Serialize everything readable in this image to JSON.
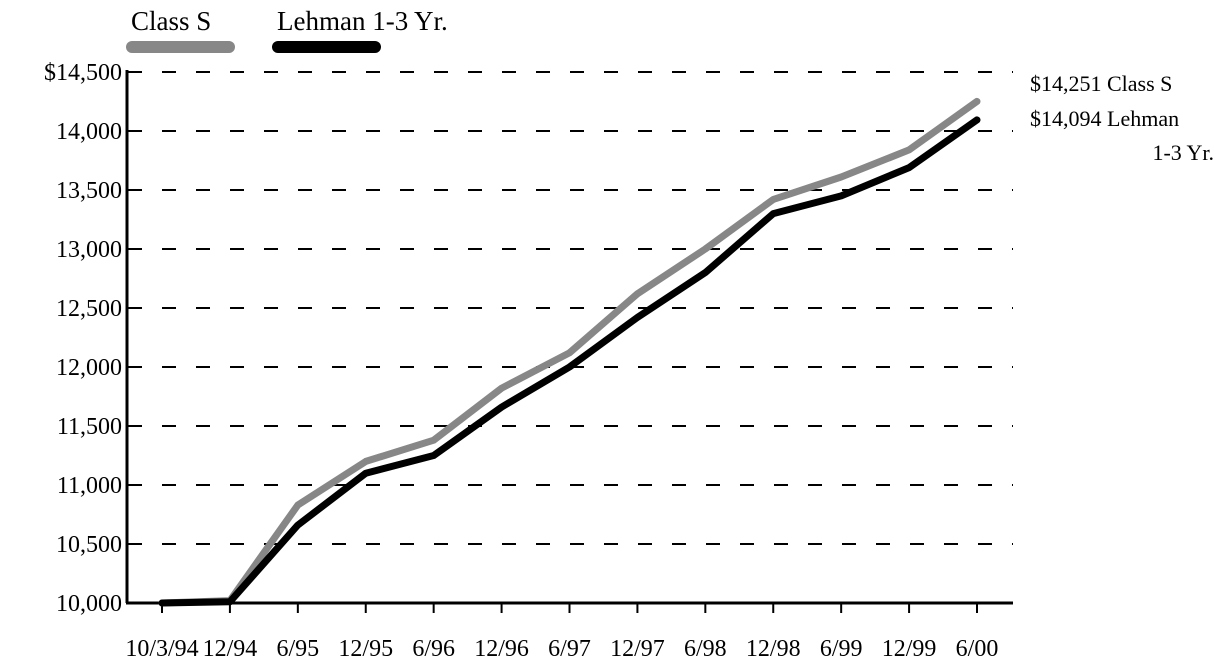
{
  "chart_data": {
    "type": "line",
    "categories": [
      "10/3/94",
      "12/94",
      "6/95",
      "12/95",
      "6/96",
      "12/96",
      "6/97",
      "12/97",
      "6/98",
      "12/98",
      "6/99",
      "12/99",
      "6/00"
    ],
    "series": [
      {
        "name": "Class S",
        "color": "#878787",
        "values": [
          10000,
          10020,
          10830,
          11200,
          11380,
          11820,
          12120,
          12620,
          13000,
          13420,
          13610,
          13840,
          14251
        ]
      },
      {
        "name": "Lehman 1-3 Yr.",
        "color": "#000000",
        "values": [
          10000,
          10010,
          10660,
          11100,
          11250,
          11660,
          12000,
          12420,
          12800,
          13300,
          13450,
          13690,
          14094
        ]
      }
    ],
    "ylim": [
      10000,
      14500
    ],
    "yticks": [
      10000,
      10500,
      11000,
      11500,
      12000,
      12500,
      13000,
      13500,
      14000,
      14500
    ],
    "ytick_labels": [
      "10,000",
      "10,500",
      "11,000",
      "11,500",
      "12,000",
      "12,500",
      "13,000",
      "13,500",
      "14,000",
      "$14,500"
    ],
    "grid": "dashed horizontal",
    "legend": [
      {
        "label": "Class S",
        "color": "#878787"
      },
      {
        "label": "Lehman 1-3 Yr.",
        "color": "#000000"
      }
    ],
    "legend_position": "top-left",
    "end_labels": [
      {
        "line1": "$14,251 Class S",
        "line2": ""
      },
      {
        "line1": "$14,094 Lehman",
        "line2": "1-3 Yr."
      }
    ]
  }
}
